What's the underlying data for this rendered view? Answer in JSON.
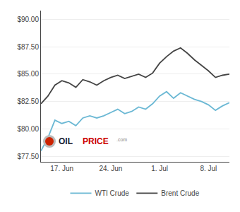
{
  "chart_data": {
    "type": "line",
    "categories": [
      null,
      null,
      null,
      "17. Jun",
      null,
      null,
      null,
      null,
      null,
      null,
      "24. Jun",
      null,
      null,
      null,
      null,
      null,
      null,
      "1. Jul",
      null,
      null,
      null,
      null,
      null,
      null,
      "8. Jul",
      null,
      null,
      null
    ],
    "series": [
      {
        "name": "WTI Crude",
        "color": "#6bb8d4",
        "values": [
          78.0,
          79.2,
          80.8,
          80.5,
          80.7,
          80.3,
          81.0,
          81.2,
          81.0,
          81.2,
          81.5,
          81.8,
          81.4,
          81.6,
          82.0,
          81.8,
          82.3,
          83.0,
          83.4,
          82.8,
          83.3,
          83.0,
          82.7,
          82.5,
          82.2,
          81.7,
          82.1,
          82.4
        ]
      },
      {
        "name": "Brent Crude",
        "color": "#444444",
        "values": [
          82.3,
          83.0,
          84.0,
          84.4,
          84.2,
          83.8,
          84.5,
          84.3,
          84.0,
          84.4,
          84.7,
          84.9,
          84.6,
          84.8,
          85.0,
          84.7,
          85.1,
          86.0,
          86.6,
          87.1,
          87.4,
          86.9,
          86.3,
          85.8,
          85.3,
          84.7,
          84.9,
          85.0
        ]
      }
    ],
    "ylim": [
      77.0,
      90.8
    ],
    "yticks": [
      {
        "value": 77.5,
        "label": "$77.50"
      },
      {
        "value": 80.0,
        "label": "$80.00"
      },
      {
        "value": 82.5,
        "label": "$82.50"
      },
      {
        "value": 85.0,
        "label": "$85.00"
      },
      {
        "value": 87.5,
        "label": "$87.50"
      },
      {
        "value": 90.0,
        "label": "$90.00"
      }
    ],
    "grid": true,
    "legend": "bottom",
    "annotations": [
      {
        "text": "OIL",
        "color": "#1a1a2e"
      },
      {
        "text": "PRICE",
        "color": "#cc0000"
      },
      {
        "text": ".com",
        "color": "#888888"
      }
    ]
  }
}
